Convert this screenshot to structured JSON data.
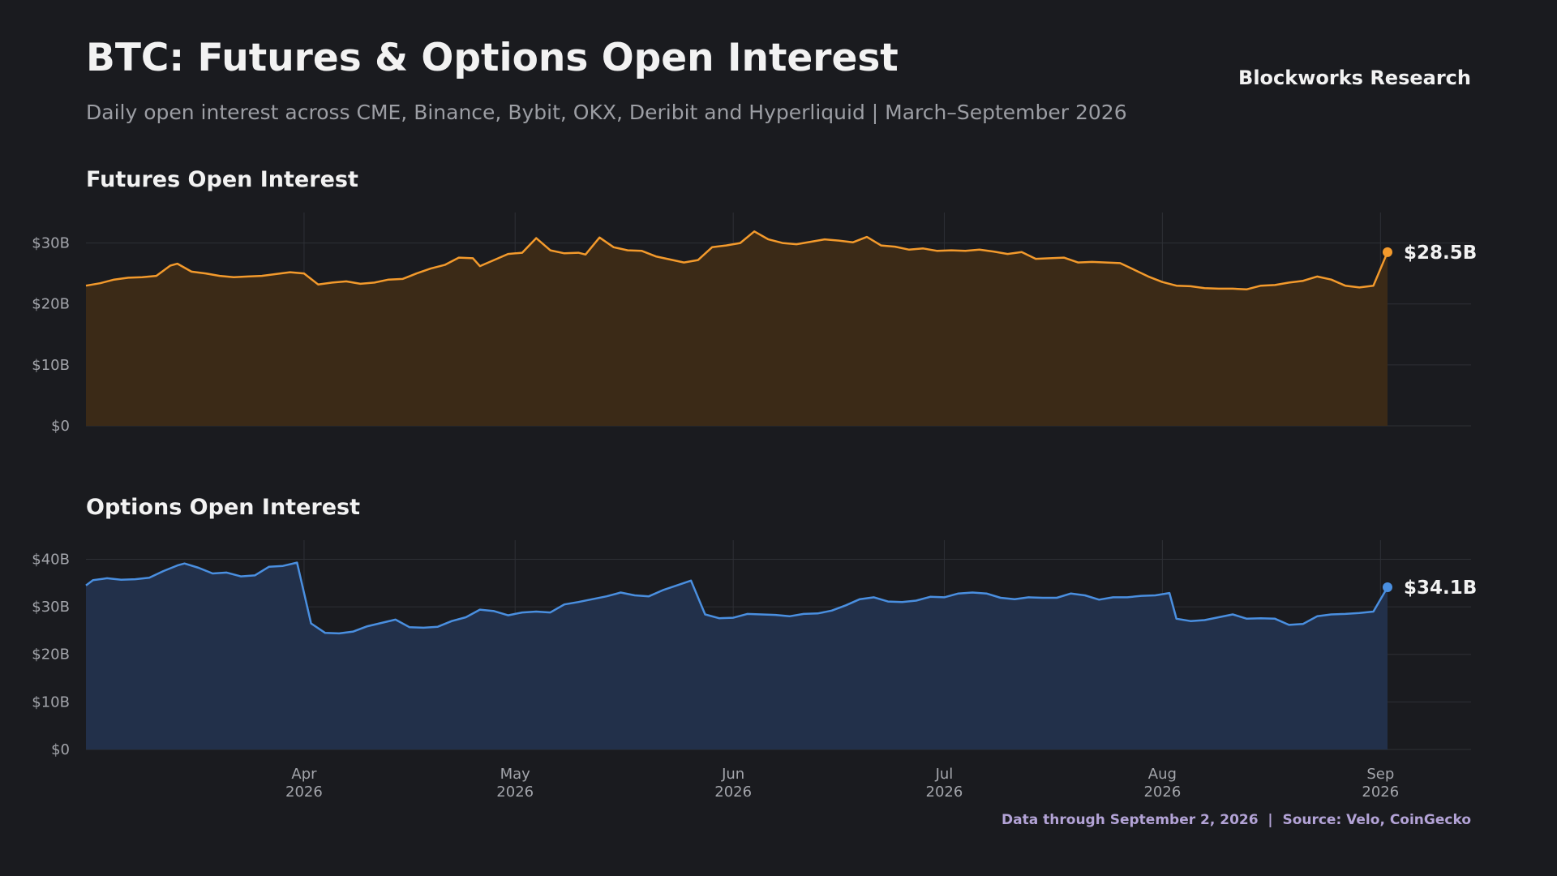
{
  "header": {
    "title": "BTC: Futures & Options Open Interest",
    "subtitle": "Daily open interest across CME, Binance, Bybit, OKX, Deribit and Hyperliquid | March–September 2026",
    "brand": "Blockworks Research"
  },
  "footer": {
    "note": "Data through September 2, 2026  |  Source: Velo, CoinGecko"
  },
  "colors": {
    "background": "#1a1b1f",
    "futures_line": "#f39a2c",
    "futures_fill": "#3b2a17",
    "options_line": "#4a8fe0",
    "options_fill": "#22304a",
    "grid": "#2e3036"
  },
  "chart_data": [
    {
      "type": "area",
      "title": "Futures Open Interest",
      "unit": "$B",
      "x_start": "2026-03-01",
      "x_end": "2026-09-02",
      "xticks": [
        {
          "date": "2026-04-01",
          "label": [
            "Apr",
            "2026"
          ]
        },
        {
          "date": "2026-05-01",
          "label": [
            "May",
            "2026"
          ]
        },
        {
          "date": "2026-06-01",
          "label": [
            "Jun",
            "2026"
          ]
        },
        {
          "date": "2026-07-01",
          "label": [
            "Jul",
            "2026"
          ]
        },
        {
          "date": "2026-08-01",
          "label": [
            "Aug",
            "2026"
          ]
        },
        {
          "date": "2026-09-01",
          "label": [
            "Sep",
            "2026"
          ]
        }
      ],
      "ylim": [
        0,
        35
      ],
      "yticks": [
        {
          "value": 0,
          "label": "$0"
        },
        {
          "value": 10,
          "label": "$10B"
        },
        {
          "value": 20,
          "label": "$20B"
        },
        {
          "value": 30,
          "label": "$30B"
        }
      ],
      "grid": true,
      "end_label": "$28.5B",
      "points": [
        [
          "2026-03-01",
          23.0
        ],
        [
          "2026-03-03",
          23.4
        ],
        [
          "2026-03-05",
          24.0
        ],
        [
          "2026-03-07",
          24.3
        ],
        [
          "2026-03-09",
          24.4
        ],
        [
          "2026-03-11",
          24.6
        ],
        [
          "2026-03-13",
          26.3
        ],
        [
          "2026-03-14",
          26.6
        ],
        [
          "2026-03-16",
          25.3
        ],
        [
          "2026-03-18",
          25.0
        ],
        [
          "2026-03-20",
          24.6
        ],
        [
          "2026-03-22",
          24.4
        ],
        [
          "2026-03-24",
          24.5
        ],
        [
          "2026-03-26",
          24.6
        ],
        [
          "2026-03-28",
          24.9
        ],
        [
          "2026-03-30",
          25.2
        ],
        [
          "2026-04-01",
          25.0
        ],
        [
          "2026-04-03",
          23.2
        ],
        [
          "2026-04-05",
          23.5
        ],
        [
          "2026-04-07",
          23.7
        ],
        [
          "2026-04-09",
          23.3
        ],
        [
          "2026-04-11",
          23.5
        ],
        [
          "2026-04-13",
          24.0
        ],
        [
          "2026-04-15",
          24.1
        ],
        [
          "2026-04-17",
          25.0
        ],
        [
          "2026-04-19",
          25.8
        ],
        [
          "2026-04-21",
          26.4
        ],
        [
          "2026-04-23",
          27.6
        ],
        [
          "2026-04-25",
          27.5
        ],
        [
          "2026-04-26",
          26.2
        ],
        [
          "2026-04-28",
          27.2
        ],
        [
          "2026-04-30",
          28.2
        ],
        [
          "2026-05-02",
          28.4
        ],
        [
          "2026-05-04",
          30.8
        ],
        [
          "2026-05-06",
          28.8
        ],
        [
          "2026-05-08",
          28.3
        ],
        [
          "2026-05-10",
          28.4
        ],
        [
          "2026-05-11",
          28.1
        ],
        [
          "2026-05-13",
          30.9
        ],
        [
          "2026-05-15",
          29.3
        ],
        [
          "2026-05-17",
          28.8
        ],
        [
          "2026-05-19",
          28.7
        ],
        [
          "2026-05-21",
          27.8
        ],
        [
          "2026-05-23",
          27.3
        ],
        [
          "2026-05-25",
          26.8
        ],
        [
          "2026-05-27",
          27.2
        ],
        [
          "2026-05-29",
          29.3
        ],
        [
          "2026-05-31",
          29.6
        ],
        [
          "2026-06-02",
          30.0
        ],
        [
          "2026-06-04",
          31.9
        ],
        [
          "2026-06-06",
          30.6
        ],
        [
          "2026-06-08",
          30.0
        ],
        [
          "2026-06-10",
          29.8
        ],
        [
          "2026-06-12",
          30.2
        ],
        [
          "2026-06-14",
          30.6
        ],
        [
          "2026-06-16",
          30.4
        ],
        [
          "2026-06-18",
          30.1
        ],
        [
          "2026-06-20",
          31.0
        ],
        [
          "2026-06-22",
          29.6
        ],
        [
          "2026-06-24",
          29.4
        ],
        [
          "2026-06-26",
          28.9
        ],
        [
          "2026-06-28",
          29.1
        ],
        [
          "2026-06-30",
          28.7
        ],
        [
          "2026-07-02",
          28.8
        ],
        [
          "2026-07-04",
          28.7
        ],
        [
          "2026-07-06",
          28.9
        ],
        [
          "2026-07-08",
          28.6
        ],
        [
          "2026-07-10",
          28.2
        ],
        [
          "2026-07-12",
          28.5
        ],
        [
          "2026-07-14",
          27.4
        ],
        [
          "2026-07-16",
          27.5
        ],
        [
          "2026-07-18",
          27.6
        ],
        [
          "2026-07-20",
          26.8
        ],
        [
          "2026-07-22",
          26.9
        ],
        [
          "2026-07-24",
          26.8
        ],
        [
          "2026-07-26",
          26.7
        ],
        [
          "2026-07-28",
          25.6
        ],
        [
          "2026-07-30",
          24.5
        ],
        [
          "2026-08-01",
          23.6
        ],
        [
          "2026-08-03",
          23.0
        ],
        [
          "2026-08-05",
          22.9
        ],
        [
          "2026-08-07",
          22.6
        ],
        [
          "2026-08-09",
          22.5
        ],
        [
          "2026-08-11",
          22.5
        ],
        [
          "2026-08-13",
          22.4
        ],
        [
          "2026-08-15",
          23.0
        ],
        [
          "2026-08-17",
          23.1
        ],
        [
          "2026-08-19",
          23.5
        ],
        [
          "2026-08-21",
          23.8
        ],
        [
          "2026-08-23",
          24.5
        ],
        [
          "2026-08-25",
          24.0
        ],
        [
          "2026-08-27",
          23.0
        ],
        [
          "2026-08-29",
          22.7
        ],
        [
          "2026-08-31",
          23.0
        ],
        [
          "2026-09-02",
          28.5
        ]
      ]
    },
    {
      "type": "area",
      "title": "Options Open Interest",
      "unit": "$B",
      "x_start": "2026-03-01",
      "x_end": "2026-09-02",
      "xticks": [
        {
          "date": "2026-04-01",
          "label": [
            "Apr",
            "2026"
          ]
        },
        {
          "date": "2026-05-01",
          "label": [
            "May",
            "2026"
          ]
        },
        {
          "date": "2026-06-01",
          "label": [
            "Jun",
            "2026"
          ]
        },
        {
          "date": "2026-07-01",
          "label": [
            "Jul",
            "2026"
          ]
        },
        {
          "date": "2026-08-01",
          "label": [
            "Aug",
            "2026"
          ]
        },
        {
          "date": "2026-09-01",
          "label": [
            "Sep",
            "2026"
          ]
        }
      ],
      "ylim": [
        0,
        44
      ],
      "yticks": [
        {
          "value": 0,
          "label": "$0"
        },
        {
          "value": 10,
          "label": "$10B"
        },
        {
          "value": 20,
          "label": "$20B"
        },
        {
          "value": 30,
          "label": "$30B"
        },
        {
          "value": 40,
          "label": "$40B"
        }
      ],
      "grid": true,
      "end_label": "$34.1B",
      "points": [
        [
          "2026-03-01",
          34.5
        ],
        [
          "2026-03-02",
          35.6
        ],
        [
          "2026-03-04",
          36.0
        ],
        [
          "2026-03-06",
          35.7
        ],
        [
          "2026-03-08",
          35.8
        ],
        [
          "2026-03-10",
          36.1
        ],
        [
          "2026-03-12",
          37.5
        ],
        [
          "2026-03-14",
          38.7
        ],
        [
          "2026-03-15",
          39.1
        ],
        [
          "2026-03-17",
          38.2
        ],
        [
          "2026-03-19",
          37.0
        ],
        [
          "2026-03-21",
          37.2
        ],
        [
          "2026-03-23",
          36.4
        ],
        [
          "2026-03-25",
          36.6
        ],
        [
          "2026-03-27",
          38.4
        ],
        [
          "2026-03-29",
          38.6
        ],
        [
          "2026-03-31",
          39.3
        ],
        [
          "2026-04-02",
          26.5
        ],
        [
          "2026-04-04",
          24.5
        ],
        [
          "2026-04-06",
          24.4
        ],
        [
          "2026-04-08",
          24.8
        ],
        [
          "2026-04-10",
          25.9
        ],
        [
          "2026-04-12",
          26.6
        ],
        [
          "2026-04-14",
          27.3
        ],
        [
          "2026-04-16",
          25.7
        ],
        [
          "2026-04-18",
          25.6
        ],
        [
          "2026-04-20",
          25.8
        ],
        [
          "2026-04-22",
          27.0
        ],
        [
          "2026-04-24",
          27.8
        ],
        [
          "2026-04-26",
          29.4
        ],
        [
          "2026-04-28",
          29.1
        ],
        [
          "2026-04-30",
          28.2
        ],
        [
          "2026-05-02",
          28.8
        ],
        [
          "2026-05-04",
          29.0
        ],
        [
          "2026-05-06",
          28.8
        ],
        [
          "2026-05-08",
          30.5
        ],
        [
          "2026-05-10",
          31.0
        ],
        [
          "2026-05-12",
          31.6
        ],
        [
          "2026-05-14",
          32.2
        ],
        [
          "2026-05-16",
          33.0
        ],
        [
          "2026-05-18",
          32.4
        ],
        [
          "2026-05-20",
          32.2
        ],
        [
          "2026-05-22",
          33.5
        ],
        [
          "2026-05-24",
          34.5
        ],
        [
          "2026-05-26",
          35.5
        ],
        [
          "2026-05-28",
          28.4
        ],
        [
          "2026-05-30",
          27.6
        ],
        [
          "2026-06-01",
          27.7
        ],
        [
          "2026-06-03",
          28.5
        ],
        [
          "2026-06-05",
          28.4
        ],
        [
          "2026-06-07",
          28.3
        ],
        [
          "2026-06-09",
          28.0
        ],
        [
          "2026-06-11",
          28.5
        ],
        [
          "2026-06-13",
          28.6
        ],
        [
          "2026-06-15",
          29.2
        ],
        [
          "2026-06-17",
          30.3
        ],
        [
          "2026-06-19",
          31.6
        ],
        [
          "2026-06-21",
          32.0
        ],
        [
          "2026-06-23",
          31.1
        ],
        [
          "2026-06-25",
          31.0
        ],
        [
          "2026-06-27",
          31.3
        ],
        [
          "2026-06-29",
          32.1
        ],
        [
          "2026-07-01",
          32.0
        ],
        [
          "2026-07-03",
          32.8
        ],
        [
          "2026-07-05",
          33.0
        ],
        [
          "2026-07-07",
          32.8
        ],
        [
          "2026-07-09",
          31.9
        ],
        [
          "2026-07-11",
          31.6
        ],
        [
          "2026-07-13",
          32.0
        ],
        [
          "2026-07-15",
          31.9
        ],
        [
          "2026-07-17",
          31.9
        ],
        [
          "2026-07-19",
          32.8
        ],
        [
          "2026-07-21",
          32.4
        ],
        [
          "2026-07-23",
          31.5
        ],
        [
          "2026-07-25",
          32.0
        ],
        [
          "2026-07-27",
          32.0
        ],
        [
          "2026-07-29",
          32.3
        ],
        [
          "2026-07-31",
          32.4
        ],
        [
          "2026-08-02",
          32.9
        ],
        [
          "2026-08-03",
          27.5
        ],
        [
          "2026-08-05",
          27.0
        ],
        [
          "2026-08-07",
          27.2
        ],
        [
          "2026-08-09",
          27.8
        ],
        [
          "2026-08-11",
          28.4
        ],
        [
          "2026-08-13",
          27.5
        ],
        [
          "2026-08-15",
          27.6
        ],
        [
          "2026-08-17",
          27.5
        ],
        [
          "2026-08-19",
          26.2
        ],
        [
          "2026-08-21",
          26.4
        ],
        [
          "2026-08-23",
          28.0
        ],
        [
          "2026-08-25",
          28.4
        ],
        [
          "2026-08-27",
          28.5
        ],
        [
          "2026-08-29",
          28.7
        ],
        [
          "2026-08-31",
          29.0
        ],
        [
          "2026-09-02",
          34.1
        ]
      ]
    }
  ]
}
